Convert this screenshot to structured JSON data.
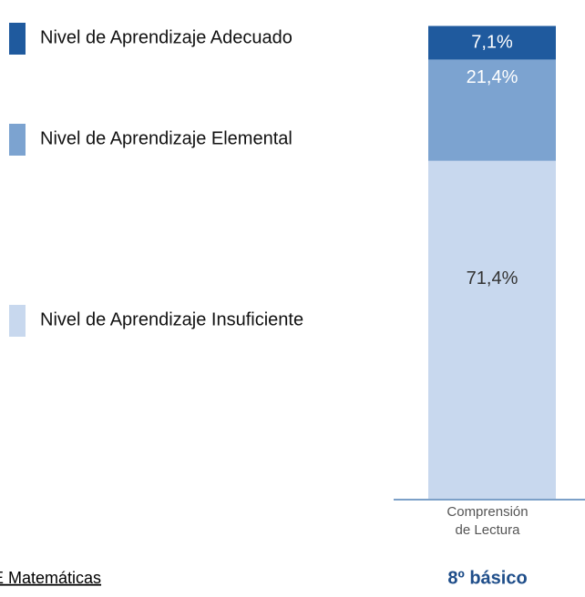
{
  "chart_data": {
    "type": "stacked_bar",
    "categories": [
      "Comprensión de Lectura"
    ],
    "series": [
      {
        "name": "Nivel de Aprendizaje Insuficiente",
        "color": "#c8d8ee",
        "values": [
          71.4
        ],
        "value_labels": [
          "71,4%"
        ]
      },
      {
        "name": "Nivel de Aprendizaje Elemental",
        "color": "#7ca3d0",
        "values": [
          21.4
        ],
        "value_labels": [
          "21,4%"
        ]
      },
      {
        "name": "Nivel de Aprendizaje Adecuado",
        "color": "#1f5a9e",
        "values": [
          7.1
        ],
        "value_labels": [
          "7,1%"
        ]
      }
    ],
    "ylim": [
      0,
      100
    ],
    "subtitle": "8º básico",
    "annotations": [
      "E Matemáticas"
    ]
  }
}
